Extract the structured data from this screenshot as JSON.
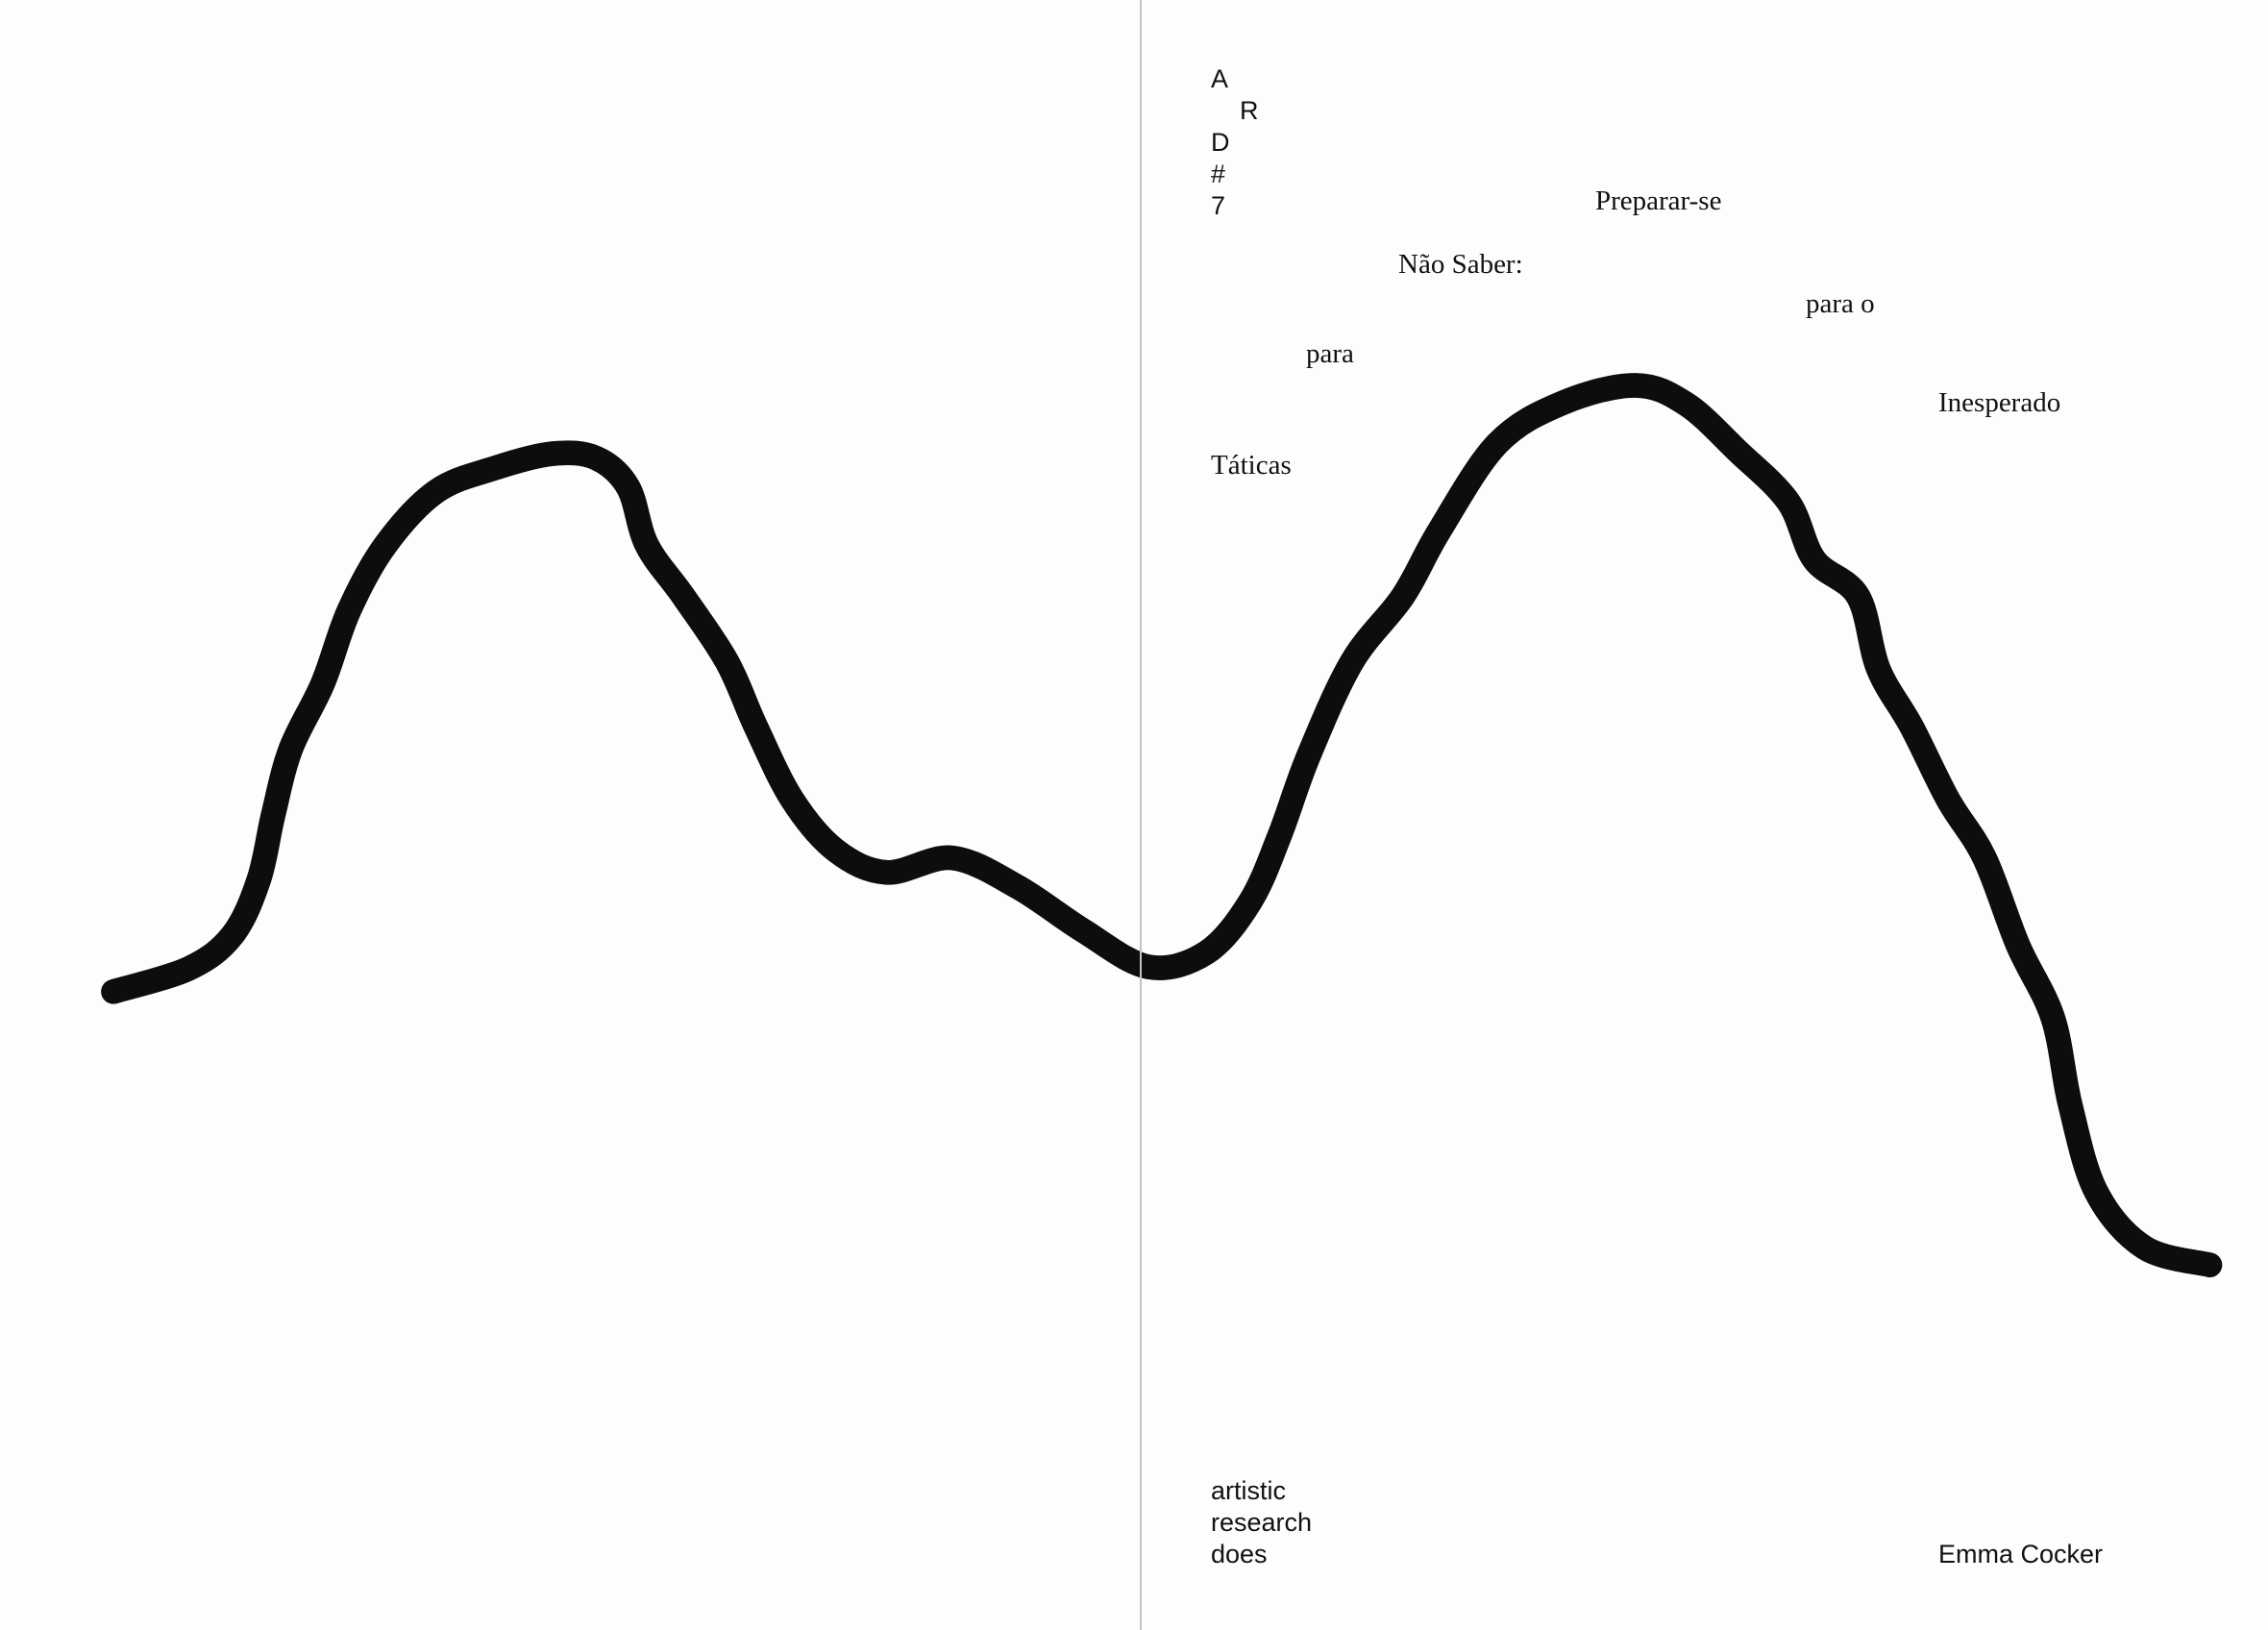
{
  "spread": {
    "series_mark": [
      "A",
      "R",
      "D",
      "#",
      "7"
    ],
    "title_words": {
      "w1": "Preparar-se",
      "w2": "Não Saber:",
      "w3": "para o",
      "w4": "para",
      "w5": "Inesperado",
      "w6": "Táticas"
    },
    "publisher_lines": [
      "artistic",
      "research",
      "does"
    ],
    "author": "Emma Cocker",
    "ink_color": "#0d0d0d"
  }
}
